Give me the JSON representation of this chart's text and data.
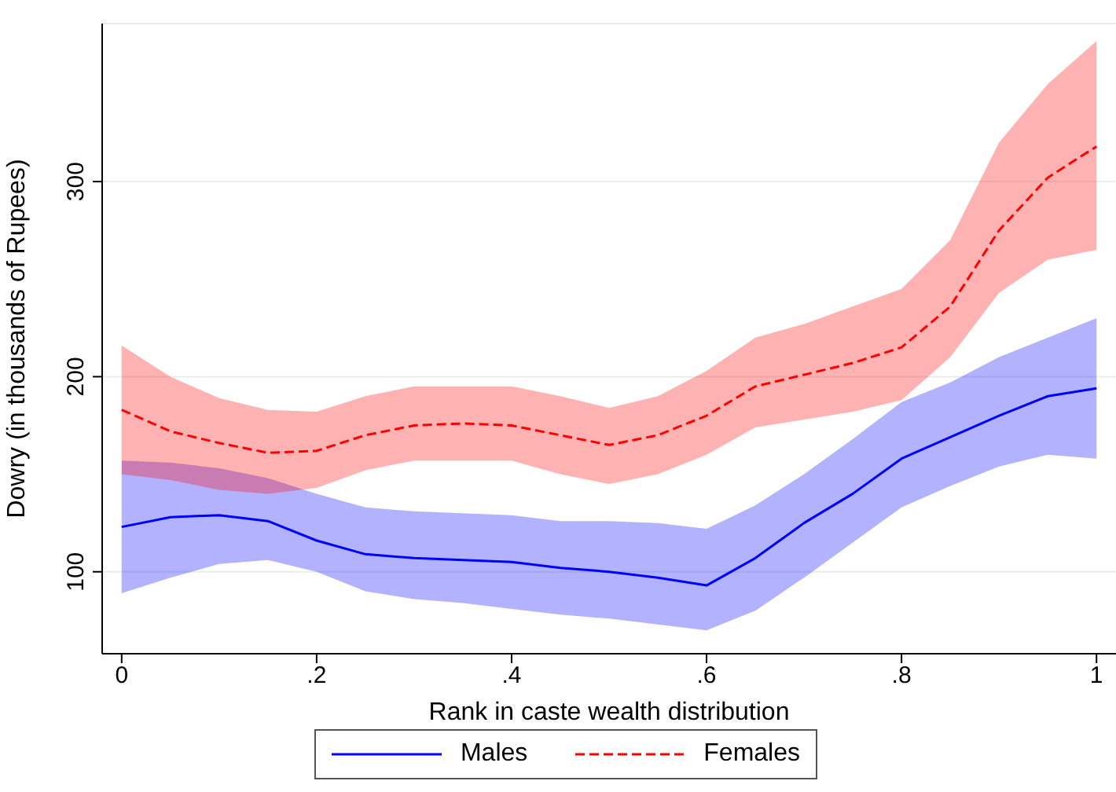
{
  "chart_data": {
    "type": "line",
    "xlabel": "Rank in caste wealth distribution",
    "ylabel": "Dowry (in thousands of Rupees)",
    "x": [
      0,
      0.05,
      0.1,
      0.15,
      0.2,
      0.25,
      0.3,
      0.35,
      0.4,
      0.45,
      0.5,
      0.55,
      0.6,
      0.65,
      0.7,
      0.75,
      0.8,
      0.85,
      0.9,
      0.95,
      1
    ],
    "xlim": [
      -0.02,
      1.02
    ],
    "xticks": [
      0,
      {
        "value": 0.2,
        "label": ".2"
      },
      {
        "value": 0.4,
        "label": ".4"
      },
      {
        "value": 0.6,
        "label": ".6"
      },
      {
        "value": 0.8,
        "label": ".8"
      },
      1
    ],
    "ylim": [
      58,
      381
    ],
    "yticks": [
      100,
      200,
      300
    ],
    "grid": "y",
    "legend": "bottom",
    "marker": "none",
    "series": [
      {
        "name": "Males",
        "color": "#0000ff",
        "line_style": "solid",
        "values": [
          123,
          128,
          129,
          126,
          116,
          109,
          107,
          106,
          105,
          102,
          100,
          97,
          93,
          107,
          125,
          140,
          158,
          169,
          180,
          190,
          194
        ],
        "lower": [
          89,
          97,
          104,
          106,
          100,
          90,
          86,
          84,
          81,
          78,
          76,
          73,
          70,
          80,
          97,
          115,
          133,
          144,
          154,
          160,
          158
        ],
        "upper": [
          157,
          156,
          153,
          148,
          140,
          133,
          131,
          130,
          129,
          126,
          126,
          125,
          122,
          134,
          150,
          168,
          187,
          197,
          210,
          220,
          230
        ]
      },
      {
        "name": "Females",
        "color": "#ff0000",
        "line_style": "dashed",
        "values": [
          183,
          172,
          166,
          161,
          162,
          170,
          175,
          176,
          175,
          170,
          165,
          170,
          180,
          195,
          201,
          207,
          215,
          236,
          275,
          302,
          318
        ],
        "lower": [
          150,
          147,
          142,
          140,
          143,
          152,
          157,
          157,
          157,
          150,
          145,
          150,
          160,
          174,
          178,
          182,
          188,
          210,
          243,
          260,
          265
        ],
        "upper": [
          216,
          200,
          189,
          183,
          182,
          190,
          195,
          195,
          195,
          190,
          184,
          190,
          203,
          220,
          227,
          236,
          245,
          270,
          320,
          350,
          372
        ]
      }
    ]
  }
}
